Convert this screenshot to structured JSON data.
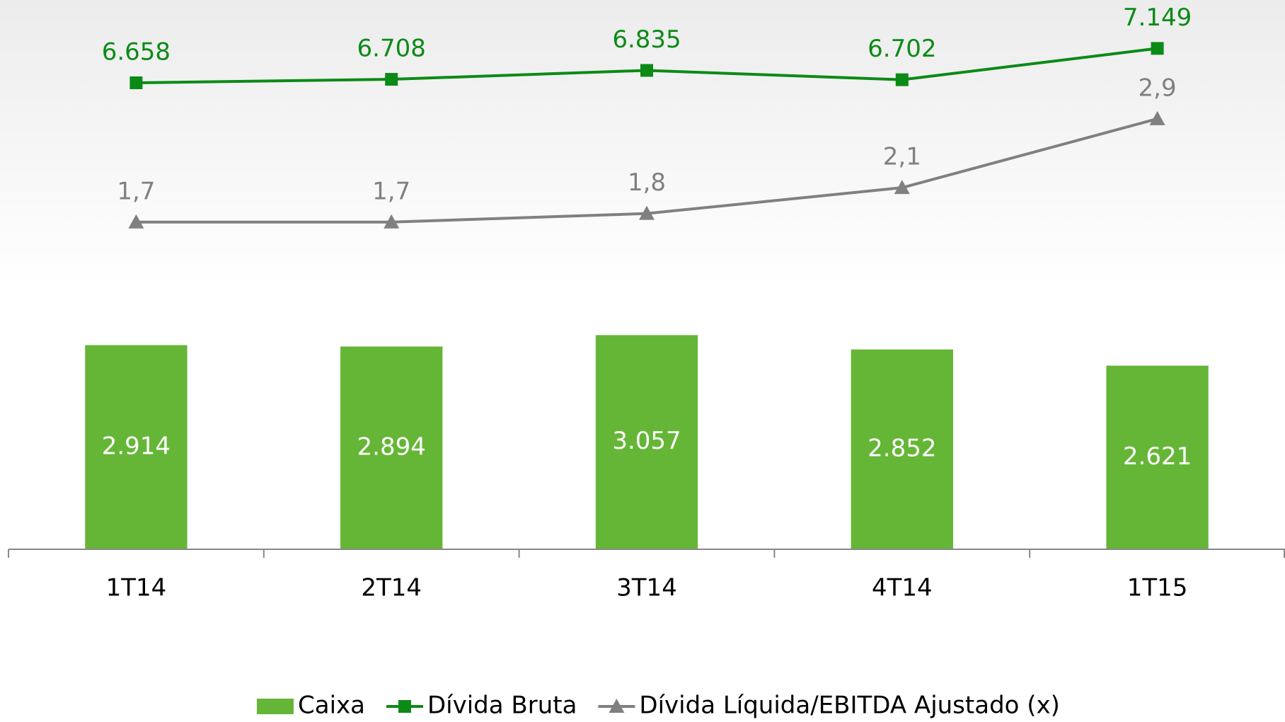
{
  "chart_data": {
    "type": "combo",
    "categories": [
      "1T14",
      "2T14",
      "3T14",
      "4T14",
      "1T15"
    ],
    "ylim": [
      0,
      7840
    ],
    "y2lim": [
      -2.1,
      4.28
    ],
    "series": [
      {
        "name": "Caixa",
        "type": "bar",
        "color": "#65b636",
        "values": [
          2914,
          2894,
          3057,
          2852,
          2621
        ],
        "value_labels": [
          "2.914",
          "2.894",
          "3.057",
          "2.852",
          "2.621"
        ]
      },
      {
        "name": "Dívida Bruta",
        "type": "line",
        "marker": "square",
        "color": "#0c8a16",
        "values": [
          6658,
          6708,
          6835,
          6702,
          7149
        ],
        "value_labels": [
          "6.658",
          "6.708",
          "6.835",
          "6.702",
          "7.149"
        ]
      },
      {
        "name": "Dívida Líquida/EBITDA Ajustado (x)",
        "type": "line",
        "marker": "triangle",
        "axis": "y2",
        "color": "#808080",
        "values": [
          1.7,
          1.7,
          1.8,
          2.1,
          2.9
        ],
        "value_labels": [
          "1,7",
          "1,7",
          "1,8",
          "2,1",
          "2,9"
        ]
      }
    ],
    "legend": "bottom"
  }
}
